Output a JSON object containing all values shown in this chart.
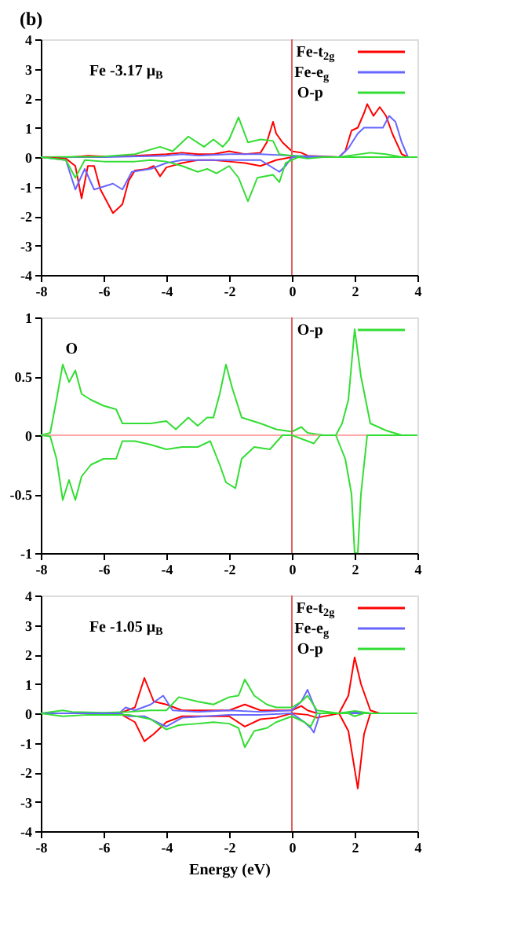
{
  "chart_data": [
    {
      "type": "line",
      "title": "(b)",
      "annotations": [
        "Fe -3.17 μ$_{B}$"
      ],
      "xlim": [
        -8,
        4
      ],
      "xticks": [
        -8,
        -6,
        -4,
        -2,
        0,
        2,
        4
      ],
      "ylim": [
        -4,
        4
      ],
      "yticks": [
        -4,
        -3,
        -2,
        -1,
        0,
        1,
        2,
        3,
        4
      ],
      "grid": false,
      "legend": "top right",
      "line_style": "solid",
      "ref_lines": [
        {
          "axis": "x",
          "value": 0,
          "color": "#e06060"
        }
      ],
      "series": [
        {
          "name": "Fe-t$_{2g}$",
          "color": "#ff0000",
          "x": [
            -8,
            -7.5,
            -7,
            -6.5,
            -6,
            -5,
            -4,
            -3.5,
            -3,
            -2.5,
            -2,
            -1.5,
            -1,
            -0.8,
            -0.6,
            -0.5,
            -0.3,
            0,
            0.3,
            0.5,
            1.5,
            1.7,
            1.9,
            2.1,
            2.3,
            2.4,
            2.6,
            2.8,
            3,
            3.2,
            3.5,
            3.7,
            4
          ],
          "values": [
            0,
            0,
            0,
            0.05,
            0.02,
            0.05,
            0.1,
            0.15,
            0.1,
            0.1,
            0.2,
            0.1,
            0.15,
            0.5,
            1.2,
            0.8,
            0.5,
            0.2,
            0.15,
            0.05,
            0,
            0.2,
            0.9,
            1,
            1.5,
            1.8,
            1.4,
            1.7,
            1.4,
            0.8,
            0.1,
            0,
            0
          ]
        },
        {
          "name": "Fe-e$_{g}$",
          "color": "#6666ff",
          "x": [
            -8,
            -6,
            -4,
            -3.5,
            -3,
            -2,
            -1,
            0,
            1.5,
            1.8,
            2.1,
            2.3,
            2.6,
            2.9,
            3.1,
            3.3,
            3.5,
            3.7,
            4
          ],
          "values": [
            0,
            0,
            0.05,
            0.1,
            0.05,
            0.1,
            0.1,
            0.05,
            0,
            0.3,
            0.8,
            1,
            1,
            1,
            1.4,
            1.2,
            0.5,
            0,
            0
          ]
        },
        {
          "name": "O-p",
          "color": "#33dd33",
          "x": [
            -8,
            -6,
            -5,
            -4.2,
            -3.8,
            -3.3,
            -2.8,
            -2.5,
            -2.2,
            -2,
            -1.7,
            -1.4,
            -1,
            -0.6,
            -0.4,
            0,
            0.5,
            1.5,
            2.5,
            3,
            3.5,
            4
          ],
          "values": [
            0,
            0.02,
            0.1,
            0.35,
            0.2,
            0.7,
            0.35,
            0.6,
            0.35,
            0.6,
            1.35,
            0.5,
            0.6,
            0.55,
            0.1,
            0.05,
            0,
            0,
            0.15,
            0.1,
            0,
            0
          ]
        },
        {
          "color": "#ff0000",
          "x": [
            -8,
            -7.2,
            -6.9,
            -6.7,
            -6.5,
            -6.3,
            -6.1,
            -5.9,
            -5.7,
            -5.4,
            -5.2,
            -5,
            -4.6,
            -4.4,
            -4.2,
            -4,
            -3.5,
            -3,
            -2.5,
            -2,
            -1.5,
            -1,
            -0.5,
            0,
            4
          ],
          "values": [
            0,
            -0.05,
            -0.3,
            -1.4,
            -0.3,
            -0.3,
            -1.1,
            -1.5,
            -1.9,
            -1.6,
            -0.8,
            -0.45,
            -0.4,
            -0.3,
            -0.65,
            -0.35,
            -0.2,
            -0.1,
            -0.1,
            -0.15,
            -0.2,
            -0.3,
            -0.1,
            0,
            0
          ]
        },
        {
          "color": "#6666ff",
          "x": [
            -8,
            -7.2,
            -6.9,
            -6.6,
            -6.3,
            -6,
            -5.7,
            -5.4,
            -5.1,
            -4.5,
            -4,
            -3.5,
            -2,
            -1,
            -0.4,
            -0.2,
            0,
            4
          ],
          "values": [
            0,
            -0.1,
            -1.1,
            -0.4,
            -1.1,
            -1,
            -0.9,
            -1.1,
            -0.5,
            -0.4,
            -0.2,
            -0.1,
            -0.1,
            -0.1,
            -0.5,
            -0.3,
            0,
            0
          ]
        },
        {
          "color": "#33dd33",
          "x": [
            -8,
            -7.2,
            -6.9,
            -6.6,
            -6,
            -5,
            -4.5,
            -4,
            -3.5,
            -3,
            -2.7,
            -2.4,
            -2,
            -1.7,
            -1.4,
            -1.1,
            -0.6,
            -0.4,
            -0.2,
            0.2,
            0.5,
            1,
            4
          ],
          "values": [
            0,
            -0.1,
            -0.7,
            -0.1,
            -0.15,
            -0.15,
            -0.1,
            -0.15,
            -0.3,
            -0.5,
            -0.4,
            -0.55,
            -0.3,
            -0.7,
            -1.5,
            -0.7,
            -0.6,
            -0.85,
            -0.2,
            0,
            -0.05,
            0,
            0
          ]
        }
      ]
    },
    {
      "type": "line",
      "annotations": [
        "O"
      ],
      "xlim": [
        -8,
        4
      ],
      "xticks": [
        -8,
        -6,
        -4,
        -2,
        0,
        2,
        4
      ],
      "ylim": [
        -1,
        1
      ],
      "yticks": [
        -1,
        -0.5,
        0,
        0.5,
        1
      ],
      "grid": false,
      "legend": "top right",
      "line_style": "solid",
      "ref_lines": [
        {
          "axis": "x",
          "value": 0,
          "color": "#e06060"
        },
        {
          "axis": "y",
          "value": 0,
          "color": "#ffaaaa"
        }
      ],
      "series": [
        {
          "name": "O-p",
          "color": "#33dd33",
          "x": [
            -8,
            -7.7,
            -7.5,
            -7.3,
            -7.1,
            -6.9,
            -6.7,
            -6.4,
            -6,
            -5.6,
            -5.4,
            -5,
            -4.5,
            -4,
            -3.7,
            -3.3,
            -3,
            -2.7,
            -2.5,
            -2.3,
            -2.1,
            -1.9,
            -1.6,
            -1,
            -0.5,
            0,
            0.3,
            0.5,
            1,
            1.4,
            1.6,
            1.8,
            2,
            2.2,
            2.5,
            3,
            3.5,
            4
          ],
          "values": [
            0,
            0.02,
            0.3,
            0.6,
            0.45,
            0.55,
            0.35,
            0.3,
            0.25,
            0.22,
            0.1,
            0.1,
            0.1,
            0.12,
            0.05,
            0.15,
            0.08,
            0.15,
            0.15,
            0.35,
            0.6,
            0.4,
            0.15,
            0.1,
            0.05,
            0.03,
            0.07,
            0.02,
            0,
            0,
            0.1,
            0.3,
            0.9,
            0.5,
            0.1,
            0.04,
            0,
            0
          ]
        },
        {
          "color": "#33dd33",
          "x": [
            -8,
            -7.7,
            -7.5,
            -7.3,
            -7.1,
            -6.9,
            -6.7,
            -6.4,
            -6,
            -5.6,
            -5.4,
            -5,
            -4.5,
            -4,
            -3.5,
            -3,
            -2.6,
            -2.3,
            -2.1,
            -1.8,
            -1.6,
            -1.2,
            -0.7,
            -0.3,
            0,
            0.7,
            0.9,
            1.4,
            1.7,
            1.9,
            2,
            2.1,
            2.2,
            2.4,
            4
          ],
          "values": [
            0,
            -0.01,
            -0.2,
            -0.55,
            -0.38,
            -0.55,
            -0.35,
            -0.25,
            -0.2,
            -0.2,
            -0.05,
            -0.05,
            -0.08,
            -0.12,
            -0.1,
            -0.1,
            -0.05,
            -0.25,
            -0.4,
            -0.45,
            -0.2,
            -0.1,
            -0.12,
            0,
            0,
            -0.07,
            0,
            0,
            -0.2,
            -0.5,
            -1,
            -1,
            -0.5,
            0,
            0
          ]
        }
      ]
    },
    {
      "type": "line",
      "annotations": [
        "Fe -1.05 μ$_{B}$"
      ],
      "xlabel": "Energy (eV)",
      "xlim": [
        -8,
        4
      ],
      "xticks": [
        -8,
        -6,
        -4,
        -2,
        0,
        2,
        4
      ],
      "ylim": [
        -4,
        4
      ],
      "yticks": [
        -4,
        -3,
        -2,
        -1,
        0,
        1,
        2,
        3,
        4
      ],
      "grid": false,
      "legend": "top right",
      "line_style": "solid",
      "ref_lines": [
        {
          "axis": "x",
          "value": 0,
          "color": "#e06060"
        }
      ],
      "series": [
        {
          "name": "Fe-t$_{2g}$",
          "color": "#ff0000",
          "x": [
            -8,
            -5.5,
            -5,
            -4.7,
            -4.4,
            -4,
            -3.5,
            -2,
            -1.5,
            -1,
            -0.5,
            0,
            0.3,
            0.5,
            0.8,
            1.5,
            1.8,
            2,
            2.2,
            2.5,
            2.8,
            4
          ],
          "values": [
            0,
            0,
            0.2,
            1.2,
            0.4,
            0.3,
            0.1,
            0.1,
            0.3,
            0.1,
            0.1,
            0.1,
            0.25,
            0.1,
            0,
            0,
            0.6,
            1.9,
            1,
            0.1,
            0,
            0
          ]
        },
        {
          "name": "Fe-e$_{g}$",
          "color": "#6666ff",
          "x": [
            -8,
            -5.5,
            -5.3,
            -5,
            -4.5,
            -4.1,
            -3.8,
            -3,
            -2,
            -1,
            0,
            0.3,
            0.5,
            0.8,
            1.5,
            2,
            2.5,
            4
          ],
          "values": [
            0,
            0,
            0.2,
            0.1,
            0.3,
            0.6,
            0.1,
            0.05,
            0.1,
            0.05,
            0.1,
            0.4,
            0.8,
            0,
            0,
            0.05,
            0,
            0
          ]
        },
        {
          "name": "O-p",
          "color": "#33dd33",
          "x": [
            -8,
            -7.3,
            -7,
            -6,
            -5.2,
            -4.5,
            -4,
            -3.6,
            -3,
            -2.5,
            -2,
            -1.7,
            -1.5,
            -1.2,
            -0.8,
            -0.5,
            0,
            0.3,
            0.5,
            0.8,
            1.5,
            2,
            2.5,
            4
          ],
          "values": [
            0,
            0.1,
            0.05,
            0.02,
            0.05,
            0.1,
            0.1,
            0.55,
            0.4,
            0.3,
            0.55,
            0.6,
            1.15,
            0.6,
            0.3,
            0.2,
            0.2,
            0.4,
            0.6,
            0.1,
            0,
            0.08,
            0,
            0
          ]
        },
        {
          "color": "#ff0000",
          "x": [
            -8,
            -5.5,
            -5,
            -4.7,
            -4.4,
            -4,
            -3.5,
            -2,
            -1.5,
            -1,
            -0.5,
            0,
            0.5,
            0.8,
            1.5,
            1.8,
            2.1,
            2.3,
            2.5,
            4
          ],
          "values": [
            0,
            0,
            -0.3,
            -0.95,
            -0.7,
            -0.3,
            -0.1,
            -0.1,
            -0.45,
            -0.2,
            -0.15,
            0,
            -0.05,
            -0.15,
            0,
            -0.6,
            -2.55,
            -0.7,
            0,
            0
          ]
        },
        {
          "color": "#6666ff",
          "x": [
            -8,
            -5.5,
            -5.2,
            -4.7,
            -4.3,
            -4,
            -3.5,
            -2,
            -1,
            0,
            0.4,
            0.6,
            0.7,
            0.9,
            4
          ],
          "values": [
            0,
            0,
            -0.1,
            -0.1,
            -0.3,
            -0.45,
            -0.15,
            -0.05,
            -0.05,
            0,
            -0.3,
            -0.5,
            -0.65,
            0,
            0
          ]
        },
        {
          "color": "#33dd33",
          "x": [
            -8,
            -7.3,
            -6.5,
            -5.2,
            -4.5,
            -4,
            -3.6,
            -3,
            -2.5,
            -2,
            -1.7,
            -1.5,
            -1.2,
            -0.8,
            -0.5,
            0,
            0.4,
            0.6,
            0.8,
            1.8,
            2,
            2.3,
            4
          ],
          "values": [
            0,
            -0.1,
            -0.05,
            -0.05,
            -0.2,
            -0.55,
            -0.4,
            -0.35,
            -0.3,
            -0.35,
            -0.5,
            -1.15,
            -0.6,
            -0.5,
            -0.3,
            -0.1,
            -0.3,
            -0.45,
            0,
            0,
            -0.1,
            0,
            0
          ]
        }
      ]
    }
  ]
}
